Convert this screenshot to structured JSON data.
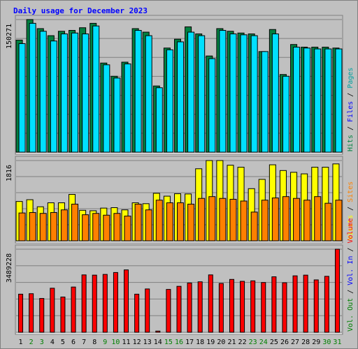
{
  "page": {
    "title": "Daily usage for December 2023",
    "colors": {
      "background": "#c0c0c0",
      "panel_border_light": "#ffffff",
      "panel_border_dark": "#808080",
      "gridline": "#808080",
      "title": "#0000ff",
      "bar_outline": "#000000"
    }
  },
  "chart_data": [
    {
      "type": "bar",
      "title": "Daily usage for December 2023",
      "categories": [
        "1",
        "2",
        "3",
        "4",
        "5",
        "6",
        "7",
        "8",
        "9",
        "10",
        "11",
        "12",
        "13",
        "14",
        "15",
        "16",
        "17",
        "18",
        "19",
        "20",
        "21",
        "22",
        "23",
        "24",
        "25",
        "26",
        "27",
        "28",
        "29",
        "30",
        "31"
      ],
      "category_colors": [
        "#000000",
        "#008000",
        "#008000",
        "#000000",
        "#000000",
        "#000000",
        "#000000",
        "#000000",
        "#008000",
        "#008000",
        "#000000",
        "#000000",
        "#000000",
        "#000000",
        "#008000",
        "#008000",
        "#000000",
        "#000000",
        "#000000",
        "#000000",
        "#000000",
        "#000000",
        "#008000",
        "#008000",
        "#000000",
        "#000000",
        "#000000",
        "#000000",
        "#000000",
        "#008000",
        "#008000"
      ],
      "ymax_label": "150271",
      "ylim": [
        0,
        150271
      ],
      "grid": true,
      "legend": {
        "placement": "right",
        "entries": [
          {
            "label": "Pages",
            "color": "#00a0a0"
          },
          {
            "label": "Files",
            "color": "#0000ff"
          },
          {
            "label": "Hits",
            "color": "#008040"
          }
        ],
        "separator": " / "
      },
      "series": [
        {
          "name": "Hits",
          "color": "#008040",
          "values": [
            127000,
            150271,
            140000,
            132000,
            137000,
            138000,
            141000,
            146000,
            101000,
            86000,
            102000,
            140000,
            136000,
            75000,
            118000,
            128000,
            142000,
            134000,
            109000,
            140000,
            137000,
            135000,
            134000,
            114000,
            139000,
            88000,
            122000,
            119000,
            119000,
            119000,
            118000
          ]
        },
        {
          "name": "Files",
          "color": "#00e0ff",
          "values": [
            123000,
            146000,
            137000,
            126000,
            134000,
            135000,
            134000,
            143000,
            99000,
            84000,
            100000,
            138000,
            132000,
            73000,
            116000,
            125000,
            136000,
            132000,
            106000,
            138000,
            134000,
            133000,
            132000,
            114000,
            134000,
            86000,
            119000,
            118000,
            117000,
            117000,
            117000
          ]
        }
      ]
    },
    {
      "type": "bar",
      "ymax_label": "1816",
      "ylim": [
        0,
        1816
      ],
      "grid": true,
      "legend": {
        "placement": "right",
        "entries": [
          {
            "label": "Sites",
            "color": "#ff8000"
          },
          {
            "label": "Visits",
            "color": "#ffff00"
          }
        ],
        "separator": " / "
      },
      "series": [
        {
          "name": "Visits",
          "color": "#ffff00",
          "values": [
            890,
            930,
            770,
            860,
            860,
            1050,
            690,
            680,
            740,
            750,
            700,
            860,
            840,
            1075,
            1010,
            1065,
            1060,
            1630,
            1816,
            1816,
            1710,
            1665,
            1180,
            1390,
            1720,
            1590,
            1550,
            1515,
            1665,
            1665,
            1740
          ]
        },
        {
          "name": "Sites",
          "color": "#ff8000",
          "values": [
            630,
            640,
            620,
            640,
            700,
            830,
            590,
            620,
            580,
            620,
            560,
            830,
            700,
            920,
            860,
            860,
            830,
            960,
            1000,
            960,
            940,
            900,
            650,
            920,
            970,
            1000,
            960,
            920,
            1000,
            850,
            920
          ]
        }
      ]
    },
    {
      "type": "bar",
      "ymax_label": "3489228",
      "ylim": [
        0,
        3489228
      ],
      "grid": true,
      "legend": {
        "placement": "right",
        "entries": [
          {
            "label": "Volume",
            "color": "#ff0000"
          },
          {
            "label": "Vol. In",
            "color": "#0000ff"
          },
          {
            "label": "Vol. Out",
            "color": "#008000"
          }
        ],
        "separator": " / "
      },
      "series": [
        {
          "name": "Volume",
          "color": "#ff0000",
          "values": [
            1600000,
            1620000,
            1420000,
            1850000,
            1480000,
            1900000,
            2410000,
            2400000,
            2430000,
            2510000,
            2620000,
            1600000,
            1820000,
            50000,
            1800000,
            1930000,
            2070000,
            2120000,
            2410000,
            2050000,
            2220000,
            2140000,
            2160000,
            2090000,
            2330000,
            2080000,
            2370000,
            2400000,
            2200000,
            2350000,
            3489228
          ]
        }
      ]
    }
  ]
}
